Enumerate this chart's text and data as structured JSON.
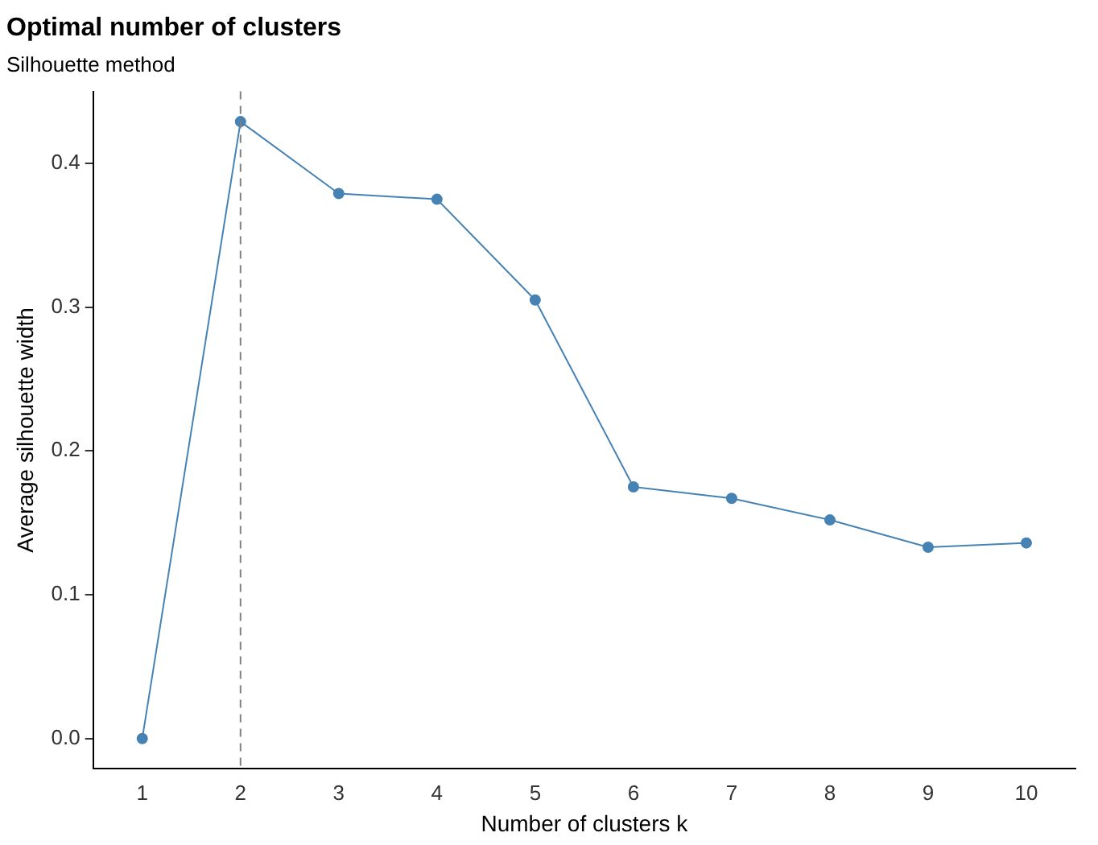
{
  "chart_data": {
    "type": "line",
    "title": "Optimal number of clusters",
    "subtitle": "Silhouette method",
    "xlabel": "Number of clusters k",
    "ylabel": "Average silhouette width",
    "categories": [
      "1",
      "2",
      "3",
      "4",
      "5",
      "6",
      "7",
      "8",
      "9",
      "10"
    ],
    "series": [
      {
        "color": "#4682b4",
        "values": [
          0,
          0.429,
          0.379,
          0.375,
          0.305,
          0.175,
          0.167,
          0.152,
          0.133,
          0.136
        ]
      }
    ],
    "ylim": [
      -0.021,
      0.45
    ],
    "yticks": [
      {
        "value": 0,
        "label": "0.0"
      },
      0.1,
      0.2,
      0.3,
      0.4
    ],
    "ref_lines": [
      {
        "axis": "x",
        "value": "2",
        "color": "#808080",
        "line_style": "dashed"
      }
    ],
    "grid": false,
    "legend": false,
    "marker": "circle",
    "line_style": "solid"
  }
}
